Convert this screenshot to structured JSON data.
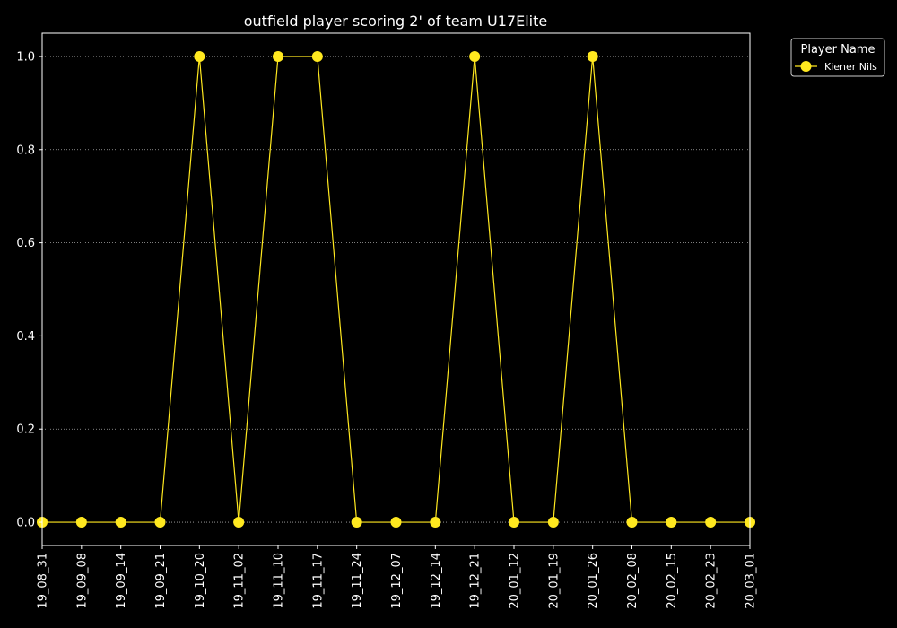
{
  "chart_data": {
    "type": "line",
    "title": "outfield player scoring 2' of team U17Elite",
    "xlabel": "",
    "ylabel": "",
    "categories": [
      "19_08_31",
      "19_09_08",
      "19_09_14",
      "19_09_21",
      "19_10_20",
      "19_11_02",
      "19_11_10",
      "19_11_17",
      "19_11_24",
      "19_12_07",
      "19_12_14",
      "19_12_21",
      "20_01_12",
      "20_01_19",
      "20_01_26",
      "20_02_08",
      "20_02_15",
      "20_02_23",
      "20_03_01"
    ],
    "series": [
      {
        "name": "Kiener Nils",
        "color": "#ffe81f",
        "values": [
          0,
          0,
          0,
          0,
          1,
          0,
          1,
          1,
          0,
          0,
          0,
          1,
          0,
          0,
          1,
          0,
          0,
          0,
          0
        ]
      }
    ],
    "ylim": [
      -0.05,
      1.05
    ],
    "yticks": [
      0.0,
      0.2,
      0.4,
      0.6,
      0.8,
      1.0
    ],
    "ytick_labels": [
      "0.0",
      "0.2",
      "0.4",
      "0.6",
      "0.8",
      "1.0"
    ],
    "grid": "horizontal-dotted",
    "legend": {
      "title": "Player Name",
      "placement": "outside-top-right"
    },
    "background": "#000000",
    "axis_color": "#ffffff"
  }
}
